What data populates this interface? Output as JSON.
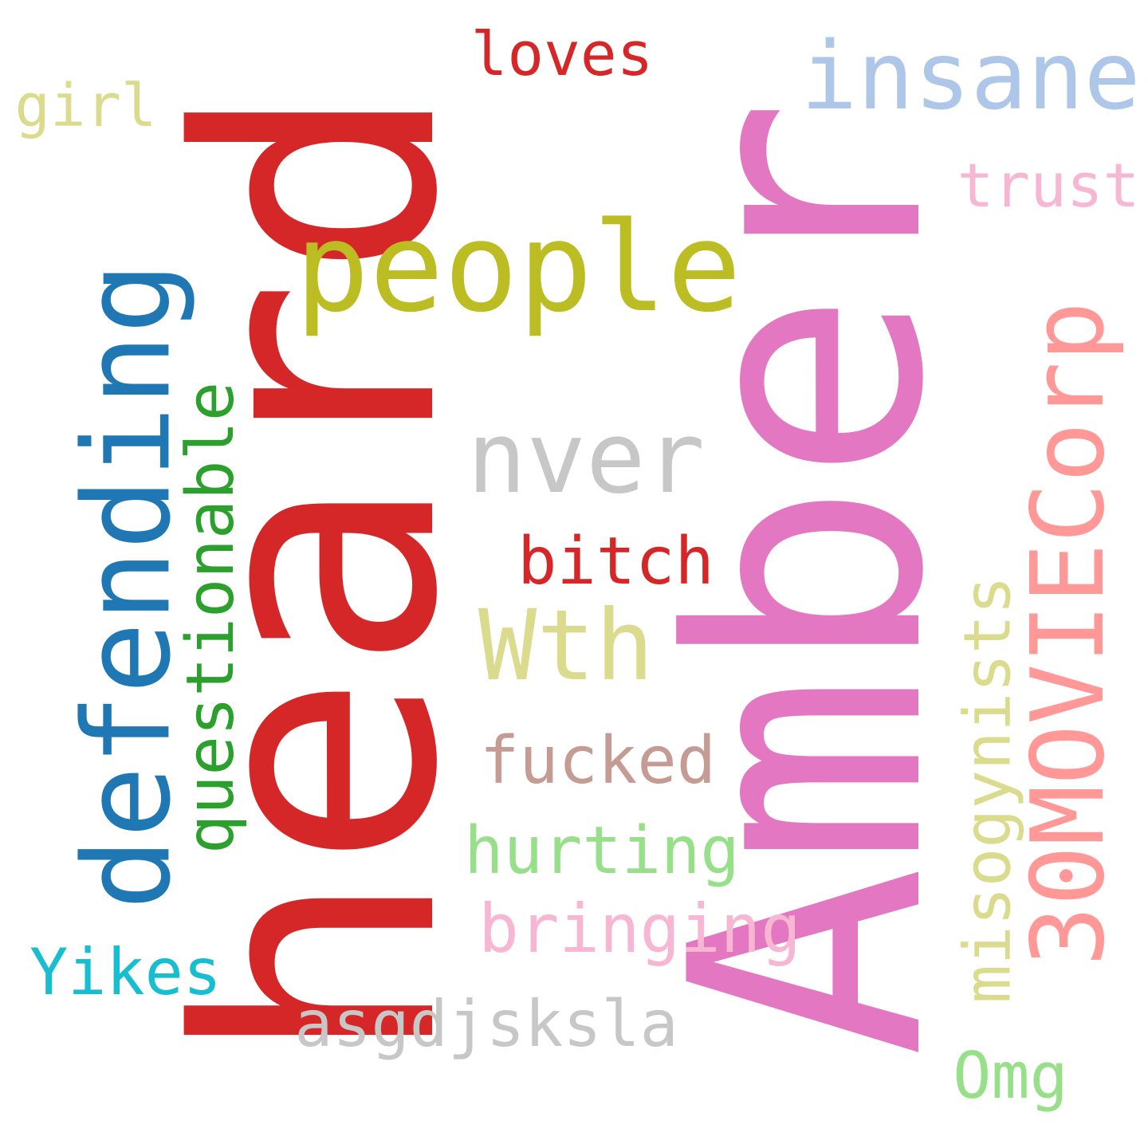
{
  "words": [
    {
      "id": "heard",
      "text": "heard",
      "color": "#d62728",
      "rotated": true
    },
    {
      "id": "amber",
      "text": "Amber",
      "color": "#e377c2",
      "rotated": true
    },
    {
      "id": "defending",
      "text": "defending",
      "color": "#1f77b4",
      "rotated": true
    },
    {
      "id": "people",
      "text": "people",
      "color": "#bcbd22",
      "rotated": false
    },
    {
      "id": "insane",
      "text": "insane",
      "color": "#aec7e8",
      "rotated": false
    },
    {
      "id": "30moviecorp",
      "text": "30MOVIECorp",
      "color": "#ff9896",
      "rotated": true
    },
    {
      "id": "nver",
      "text": "nver",
      "color": "#c7c7c7",
      "rotated": false
    },
    {
      "id": "wth",
      "text": "Wth",
      "color": "#dbdb8d",
      "rotated": false
    },
    {
      "id": "questionable",
      "text": "questionable",
      "color": "#2ca02c",
      "rotated": true
    },
    {
      "id": "bitch",
      "text": "bitch",
      "color": "#d62728",
      "rotated": false
    },
    {
      "id": "misogynists",
      "text": "misogynists",
      "color": "#dbdb8d",
      "rotated": true
    },
    {
      "id": "fucked",
      "text": "fucked",
      "color": "#c49c94",
      "rotated": false
    },
    {
      "id": "hurting",
      "text": "hurting",
      "color": "#98df8a",
      "rotated": false
    },
    {
      "id": "bringing",
      "text": "bringing",
      "color": "#f7b6d2",
      "rotated": false
    },
    {
      "id": "asgdjsksla",
      "text": "asgdjsksla",
      "color": "#c7c7c7",
      "rotated": false
    },
    {
      "id": "yikes",
      "text": "Yikes",
      "color": "#17becf",
      "rotated": false
    },
    {
      "id": "omg",
      "text": "Omg",
      "color": "#98df8a",
      "rotated": false
    },
    {
      "id": "trust",
      "text": "trust",
      "color": "#f7b6d2",
      "rotated": false
    },
    {
      "id": "loves",
      "text": "loves",
      "color": "#d62728",
      "rotated": false
    },
    {
      "id": "girl",
      "text": "girl",
      "color": "#dbdb8d",
      "rotated": false
    }
  ]
}
